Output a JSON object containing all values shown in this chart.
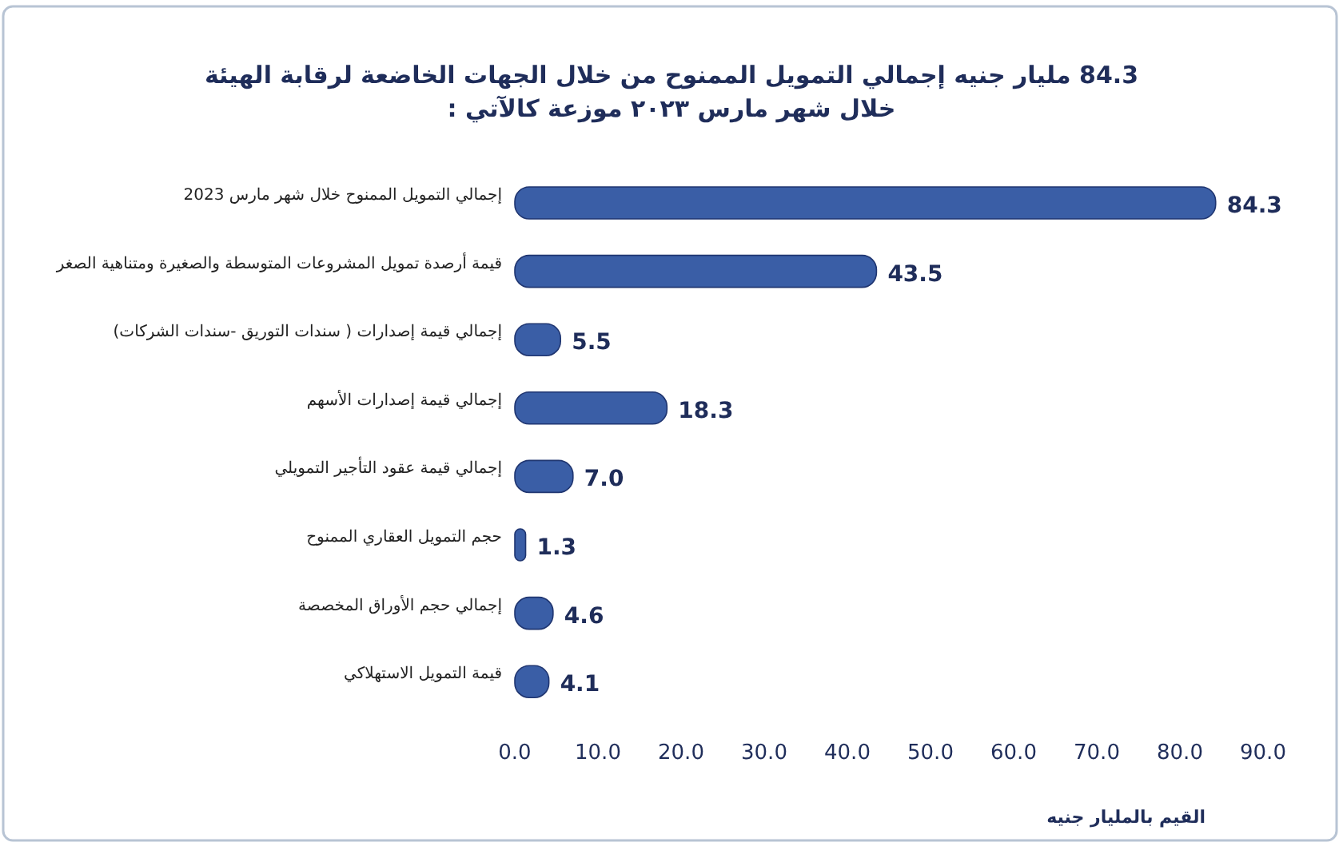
{
  "chart_data": {
    "type": "bar",
    "orientation": "horizontal",
    "title": "84.3  مليار جنيه إجمالي التمويل الممنوح من خلال الجهات الخاضعة لرقابة الهيئة",
    "subtitle": "خلال شهر مارس ٢٠٢٣   موزعة كالآتي :",
    "xlabel": "القيم بالمليار جنيه",
    "categories": [
      "إجمالي التمويل الممنوح خلال شهر مارس 2023",
      "قيمة أرصدة تمويل المشروعات المتوسطة والصغيرة ومتناهية الصغر",
      "إجمالي قيمة إصدارات ( سندات التوريق -سندات الشركات)",
      "إجمالي قيمة إصدارات الأسهم",
      "إجمالي قيمة عقود التأجير التمويلي",
      "حجم التمويل العقاري الممنوح",
      "إجمالي حجم الأوراق المخصصة",
      "قيمة التمويل الاستهلاكي"
    ],
    "values": [
      84.3,
      43.5,
      5.5,
      18.3,
      7.0,
      1.3,
      4.6,
      4.1
    ],
    "value_labels": [
      "84.3",
      "43.5",
      "5.5",
      "18.3",
      "7.0",
      "1.3",
      "4.6",
      "4.1"
    ],
    "color": "#3a5ea6",
    "xlim": [
      0,
      90
    ],
    "xticks": [
      {
        "value": 0,
        "label": "0.0"
      },
      {
        "value": 10,
        "label": "10.0"
      },
      {
        "value": 20,
        "label": "20.0"
      },
      {
        "value": 30,
        "label": "30.0"
      },
      {
        "value": 40,
        "label": "40.0"
      },
      {
        "value": 50,
        "label": "50.0"
      },
      {
        "value": 60,
        "label": "60.0"
      },
      {
        "value": 70,
        "label": "70.0"
      },
      {
        "value": 80,
        "label": "80.0"
      },
      {
        "value": 90,
        "label": "90.0"
      }
    ]
  }
}
